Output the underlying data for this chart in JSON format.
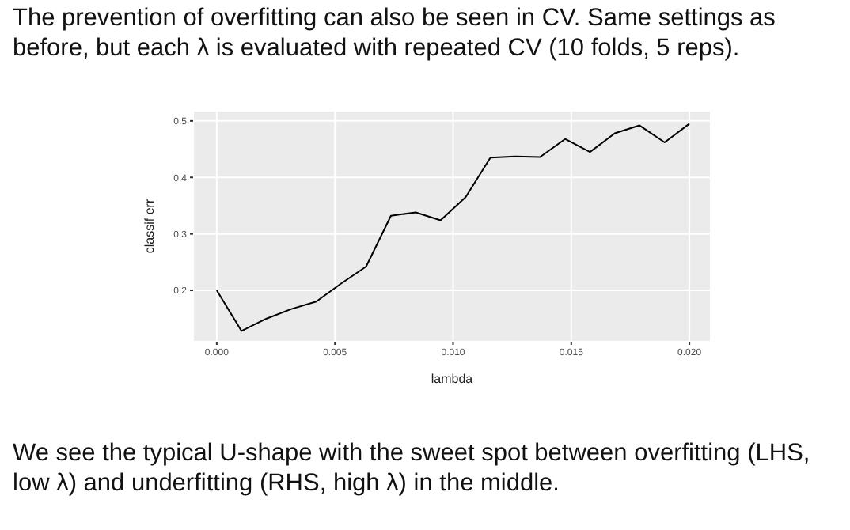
{
  "chart_data": {
    "type": "line",
    "title": "The prevention of overfitting can also be seen in CV. Same settings as before, but each λ is evaluated with repeated CV (10 folds, 5 reps).",
    "annotations": [
      "We see the typical U-shape with the sweet spot between overfitting (LHS, low λ) and underfitting (RHS, high λ) in the middle."
    ],
    "xlabel": "lambda",
    "ylabel": "classif err",
    "x": [
      0,
      0.00105,
      0.00211,
      0.00316,
      0.00421,
      0.00526,
      0.00632,
      0.00737,
      0.00842,
      0.00947,
      0.01053,
      0.01158,
      0.01263,
      0.01368,
      0.01474,
      0.01579,
      0.01684,
      0.01789,
      0.01895,
      0.02
    ],
    "series": [
      {
        "color": "#000000",
        "values": [
          0.2,
          0.128,
          0.15,
          0.167,
          0.18,
          0.212,
          0.242,
          0.332,
          0.338,
          0.324,
          0.365,
          0.435,
          0.437,
          0.436,
          0.468,
          0.445,
          0.478,
          0.492,
          0.462,
          0.495
        ]
      }
    ],
    "xlim": [
      -0.001,
      0.0209
    ],
    "xticks": [
      {
        "value": 0,
        "label": "0.000"
      },
      {
        "value": 0.005,
        "label": "0.005"
      },
      {
        "value": 0.01,
        "label": "0.010"
      },
      {
        "value": 0.015,
        "label": "0.015"
      },
      {
        "value": 0.02,
        "label": "0.020"
      }
    ],
    "ylim": [
      0.109,
      0.518
    ],
    "yticks": [
      0.2,
      0.3,
      0.4,
      0.5
    ],
    "grid": true,
    "legend": false,
    "marker": "none",
    "line_style": "solid"
  }
}
